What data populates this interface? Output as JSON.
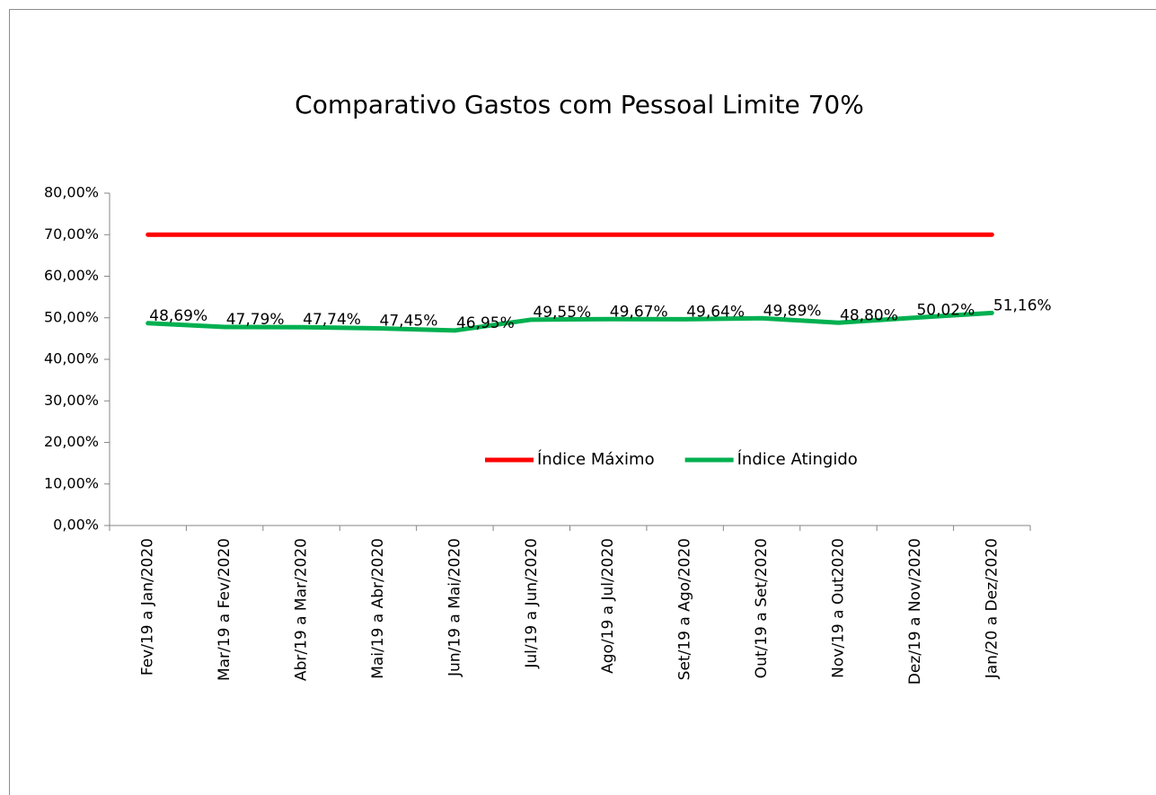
{
  "chart_data": {
    "type": "line",
    "title": "Comparativo Gastos com Pessoal Limite 70%",
    "categories": [
      "Fev/19 a Jan/2020",
      "Mar/19 a Fev/2020",
      "Abr/19 a Mar/2020",
      "Mai/19 a Abr/2020",
      "Jun/19 a Mai/2020",
      "Jul/19 a Jun/2020",
      "Ago/19 a Jul/2020",
      "Set/19 a Ago/2020",
      "Out/19 a Set/2020",
      "Nov/19 a Out2020",
      "Dez/19 a Nov/2020",
      "Jan/20 a Dez/2020"
    ],
    "series": [
      {
        "name": "Índice Máximo",
        "color": "#ff0000",
        "values": [
          70,
          70,
          70,
          70,
          70,
          70,
          70,
          70,
          70,
          70,
          70,
          70
        ]
      },
      {
        "name": "Índice Atingido",
        "color": "#00b050",
        "values": [
          48.69,
          47.79,
          47.74,
          47.45,
          46.95,
          49.55,
          49.67,
          49.64,
          49.89,
          48.8,
          50.02,
          51.16
        ],
        "value_labels": [
          "48,69%",
          "47,79%",
          "47,74%",
          "47,45%",
          "46,95%",
          "49,55%",
          "49,67%",
          "49,64%",
          "49,89%",
          "48,80%",
          "50,02%",
          "51,16%"
        ]
      }
    ],
    "ylim": [
      0,
      80
    ],
    "yticks": [
      {
        "value": 0,
        "label": "0,00%"
      },
      {
        "value": 10,
        "label": "10,00%"
      },
      {
        "value": 20,
        "label": "20,00%"
      },
      {
        "value": 30,
        "label": "30,00%"
      },
      {
        "value": 40,
        "label": "40,00%"
      },
      {
        "value": 50,
        "label": "50,00%"
      },
      {
        "value": 60,
        "label": "60,00%"
      },
      {
        "value": 70,
        "label": "70,00%"
      },
      {
        "value": 80,
        "label": "80,00%"
      }
    ],
    "grid": false,
    "legend": "center"
  }
}
